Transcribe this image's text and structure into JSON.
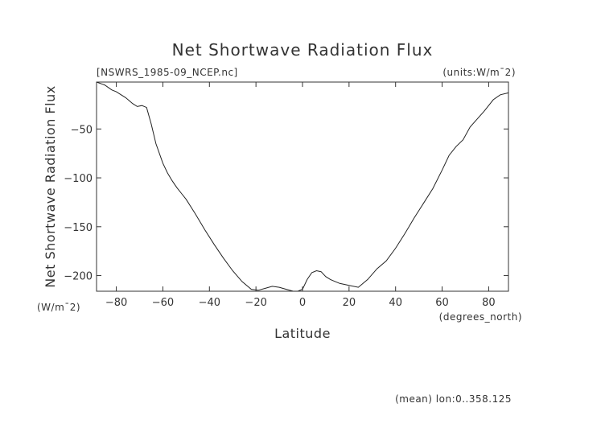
{
  "chart_data": {
    "type": "line",
    "title": "Net Shortwave Radiation Flux",
    "file_label": "[NSWRS_1985-09_NCEP.nc]",
    "units_label": "(units:W/m¯2)",
    "ylabel": "Net Shortwave Radiation Flux",
    "yunit": "(W/m¯2)",
    "xlabel": "Latitude",
    "xunit": "(degrees_north)",
    "footer": "(mean) lon:0..358.125",
    "xlim": [
      -88.5,
      88.5
    ],
    "ylim": [
      -216,
      -2
    ],
    "xticks": [
      -80,
      -60,
      -40,
      -20,
      0,
      20,
      40,
      60,
      80
    ],
    "yticks": [
      -50,
      -100,
      -150,
      -200
    ],
    "x": [
      -88.5,
      -85,
      -82,
      -80,
      -76,
      -73,
      -71,
      -69,
      -67,
      -65,
      -63,
      -60,
      -58,
      -56,
      -54,
      -52,
      -50,
      -46,
      -42,
      -38,
      -34,
      -30,
      -26,
      -22,
      -19,
      -16,
      -13,
      -10,
      -7,
      -4,
      -2,
      0,
      2,
      4,
      6,
      8,
      10,
      12,
      14,
      16,
      20,
      24,
      28,
      32,
      36,
      40,
      44,
      48,
      52,
      56,
      60,
      63,
      66,
      69,
      72,
      75,
      78,
      82,
      85,
      88.5
    ],
    "y": [
      -2,
      -5,
      -10,
      -12,
      -18,
      -24,
      -27,
      -26,
      -28,
      -45,
      -65,
      -85,
      -95,
      -103,
      -110,
      -116,
      -122,
      -137,
      -153,
      -168,
      -182,
      -195,
      -206,
      -214,
      -215,
      -213,
      -211,
      -212,
      -214,
      -216,
      -216,
      -214,
      -204,
      -197,
      -195,
      -196,
      -201,
      -204,
      -206,
      -208,
      -210,
      -212,
      -204,
      -193,
      -185,
      -172,
      -157,
      -141,
      -126,
      -111,
      -92,
      -77,
      -68,
      -61,
      -48,
      -40,
      -32,
      -20,
      -15,
      -13
    ]
  }
}
